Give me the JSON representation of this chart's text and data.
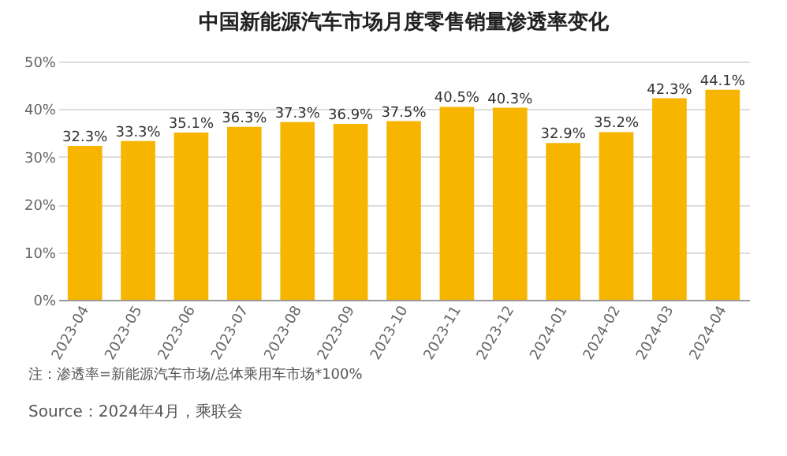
{
  "chart_data": {
    "type": "bar",
    "title": "中国新能源汽车市场月度零售销量渗透率变化",
    "categories": [
      "2023-04",
      "2023-05",
      "2023-06",
      "2023-07",
      "2023-08",
      "2023-09",
      "2023-10",
      "2023-11",
      "2023-12",
      "2024-01",
      "2024-02",
      "2024-03",
      "2024-04"
    ],
    "values": [
      32.3,
      33.3,
      35.1,
      36.3,
      37.3,
      36.9,
      37.5,
      40.5,
      40.3,
      32.9,
      35.2,
      42.3,
      44.1
    ],
    "value_labels": [
      "32.3%",
      "33.3%",
      "35.1%",
      "36.3%",
      "37.3%",
      "36.9%",
      "37.5%",
      "40.5%",
      "40.3%",
      "32.9%",
      "35.2%",
      "42.3%",
      "44.1%"
    ],
    "color": "#f7b500",
    "ylim": [
      0,
      50
    ],
    "yticks": [
      {
        "value": 0,
        "label": "0%"
      },
      {
        "value": 10,
        "label": "10%"
      },
      {
        "value": 20,
        "label": "20%"
      },
      {
        "value": 30,
        "label": "30%"
      },
      {
        "value": 40,
        "label": "40%"
      },
      {
        "value": 50,
        "label": "50%"
      }
    ],
    "grid": "y",
    "annotations": [
      "注：渗透率=新能源汽车市场/总体乘用车市场*100%",
      "Source：2024年4月，乘联会"
    ]
  }
}
